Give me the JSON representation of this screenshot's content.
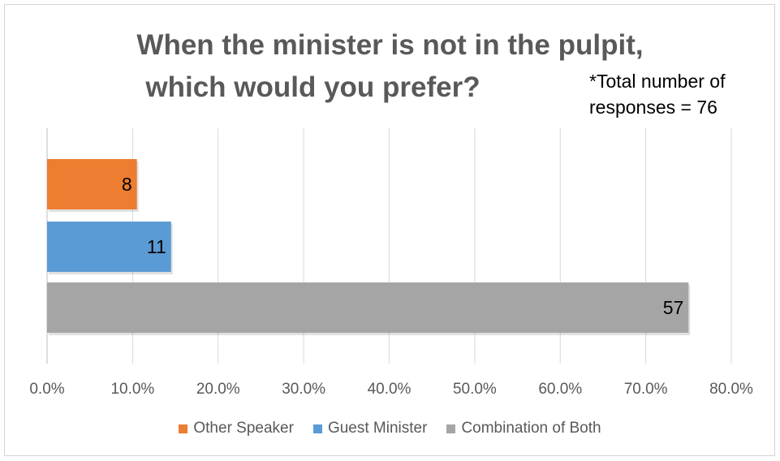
{
  "chart_data": {
    "type": "bar",
    "orientation": "horizontal",
    "title": "When the minister is not in the pulpit, which would you prefer?",
    "title_lines": [
      "When the minister is not in the pulpit,",
      "which would you prefer?"
    ],
    "note_lines": [
      "*Total number of",
      "responses = 76"
    ],
    "x_ticks": [
      "0.0%",
      "10.0%",
      "20.0%",
      "30.0%",
      "40.0%",
      "50.0%",
      "60.0%",
      "70.0%",
      "80.0%"
    ],
    "xlim": [
      0,
      0.8
    ],
    "grid": true,
    "legend_position": "bottom",
    "series": [
      {
        "name": "Other Speaker",
        "value": 0.105,
        "label": "8",
        "color": "#ed7d31"
      },
      {
        "name": "Guest Minister",
        "value": 0.145,
        "label": "11",
        "color": "#5b9bd5"
      },
      {
        "name": "Combination of Both",
        "value": 0.75,
        "label": "57",
        "color": "#a5a5a5"
      }
    ]
  }
}
